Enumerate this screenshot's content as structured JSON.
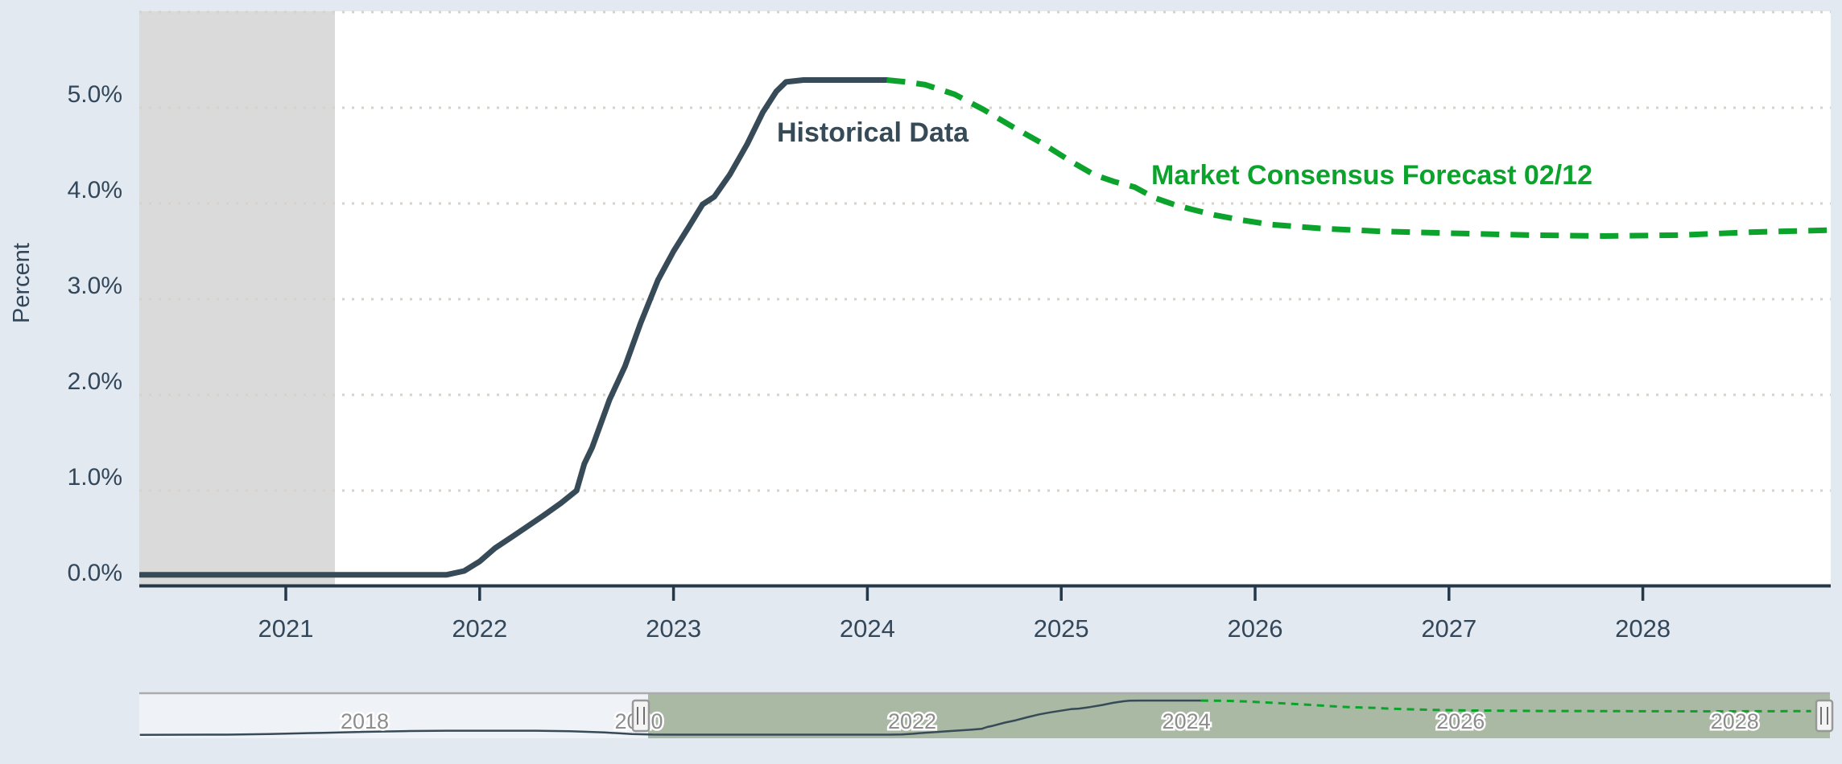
{
  "page": {
    "background_color": "#e3e9f0",
    "plot_background_color": "#ffffff",
    "shaded_band_color": "#dadada",
    "gridline_color": "#d9d1c3",
    "axis_line_color": "#24384a"
  },
  "chart_data": {
    "type": "line",
    "title": "",
    "ylabel": "Percent",
    "xlabel": "",
    "grid": "dotted-horizontal",
    "ylim_pct": [
      0,
      6
    ],
    "xlim_year": [
      2020.25,
      2028.95
    ],
    "shaded_region_years": [
      2020.25,
      2021.25
    ],
    "y_ticks": [
      "0.0%",
      "1.0%",
      "2.0%",
      "3.0%",
      "4.0%",
      "5.0%"
    ],
    "x_ticks": [
      "2021",
      "2022",
      "2023",
      "2024",
      "2025",
      "2026",
      "2027",
      "2028"
    ],
    "series": [
      {
        "name": "Historical Data",
        "style": "solid",
        "color": "#374a57",
        "points": [
          [
            2020.25,
            0.12
          ],
          [
            2020.5,
            0.12
          ],
          [
            2020.75,
            0.12
          ],
          [
            2021.0,
            0.12
          ],
          [
            2021.25,
            0.12
          ],
          [
            2021.5,
            0.12
          ],
          [
            2021.75,
            0.12
          ],
          [
            2021.83,
            0.12
          ],
          [
            2021.92,
            0.16
          ],
          [
            2022.0,
            0.26
          ],
          [
            2022.08,
            0.4
          ],
          [
            2022.17,
            0.52
          ],
          [
            2022.25,
            0.63
          ],
          [
            2022.33,
            0.74
          ],
          [
            2022.42,
            0.87
          ],
          [
            2022.5,
            1.0
          ],
          [
            2022.54,
            1.28
          ],
          [
            2022.58,
            1.45
          ],
          [
            2022.67,
            1.95
          ],
          [
            2022.75,
            2.3
          ],
          [
            2022.83,
            2.75
          ],
          [
            2022.92,
            3.2
          ],
          [
            2023.0,
            3.5
          ],
          [
            2023.08,
            3.76
          ],
          [
            2023.15,
            3.99
          ],
          [
            2023.21,
            4.07
          ],
          [
            2023.29,
            4.3
          ],
          [
            2023.38,
            4.62
          ],
          [
            2023.46,
            4.95
          ],
          [
            2023.53,
            5.17
          ],
          [
            2023.58,
            5.27
          ],
          [
            2023.67,
            5.29
          ],
          [
            2023.83,
            5.29
          ],
          [
            2024.0,
            5.29
          ],
          [
            2024.1,
            5.29
          ]
        ]
      },
      {
        "name": "Market Consensus Forecast 02/12",
        "style": "dashed",
        "color": "#0ba32c",
        "points": [
          [
            2024.1,
            5.29
          ],
          [
            2024.2,
            5.27
          ],
          [
            2024.3,
            5.24
          ],
          [
            2024.45,
            5.14
          ],
          [
            2024.6,
            4.98
          ],
          [
            2024.75,
            4.8
          ],
          [
            2024.9,
            4.63
          ],
          [
            2025.05,
            4.44
          ],
          [
            2025.17,
            4.3
          ],
          [
            2025.27,
            4.23
          ],
          [
            2025.38,
            4.17
          ],
          [
            2025.48,
            4.06
          ],
          [
            2025.58,
            3.99
          ],
          [
            2025.67,
            3.94
          ],
          [
            2025.79,
            3.88
          ],
          [
            2025.92,
            3.83
          ],
          [
            2026.08,
            3.78
          ],
          [
            2026.33,
            3.74
          ],
          [
            2026.63,
            3.71
          ],
          [
            2027.0,
            3.69
          ],
          [
            2027.4,
            3.67
          ],
          [
            2027.8,
            3.66
          ],
          [
            2028.2,
            3.67
          ],
          [
            2028.55,
            3.7
          ],
          [
            2028.95,
            3.72
          ]
        ]
      }
    ],
    "navigator": {
      "labels": [
        "2018",
        "2020",
        "2022",
        "2024",
        "2026",
        "2028"
      ],
      "selected_range_start_year": 2020.1,
      "mask_color": "#a9b9a3",
      "unselected_color": "#eff3f8",
      "history_points": [
        [
          2016.36,
          0.1
        ],
        [
          2017.0,
          0.12
        ],
        [
          2017.3,
          0.22
        ],
        [
          2017.7,
          0.4
        ],
        [
          2018.0,
          0.55
        ],
        [
          2018.3,
          0.66
        ],
        [
          2018.6,
          0.72
        ],
        [
          2019.25,
          0.72
        ],
        [
          2019.5,
          0.65
        ],
        [
          2019.75,
          0.45
        ],
        [
          2019.95,
          0.22
        ],
        [
          2020.1,
          0.13
        ],
        [
          2020.25,
          0.12
        ]
      ]
    }
  }
}
